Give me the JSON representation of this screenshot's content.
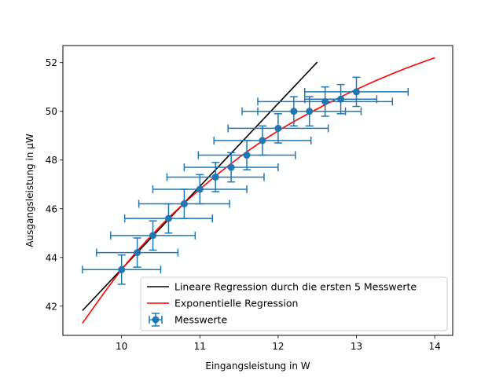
{
  "chart_data": {
    "type": "scatter",
    "xlabel": "Eingangsleistung in W",
    "ylabel": "Ausgangsleistung in μW",
    "xlim": [
      9.25,
      14.23
    ],
    "ylim": [
      40.8,
      52.7
    ],
    "xticks": [
      10,
      11,
      12,
      13,
      14
    ],
    "yticks": [
      42,
      44,
      46,
      48,
      50,
      52
    ],
    "grid": false,
    "legend_position": "lower-right",
    "series": [
      {
        "name": "Lineare Regression durch die ersten 5 Messwerte",
        "kind": "line",
        "color": "#000000",
        "x": [
          9.5,
          12.5
        ],
        "y": [
          41.82,
          52.02
        ]
      },
      {
        "name": "Exponentielle Regression",
        "kind": "curve",
        "color": "#ff0000",
        "x": [
          9.5,
          10.0,
          10.5,
          11.0,
          11.5,
          12.0,
          12.5,
          13.0,
          13.5,
          14.0
        ],
        "y": [
          41.3,
          43.5,
          45.3,
          46.8,
          48.1,
          49.2,
          50.1,
          50.9,
          51.6,
          52.2
        ]
      },
      {
        "name": "Messwerte",
        "kind": "errorbar",
        "color": "#1f77b4",
        "points": [
          {
            "x": 10.0,
            "y": 43.5,
            "xerr": 0.5,
            "yerr": 0.6
          },
          {
            "x": 10.2,
            "y": 44.2,
            "xerr": 0.52,
            "yerr": 0.6
          },
          {
            "x": 10.4,
            "y": 44.9,
            "xerr": 0.54,
            "yerr": 0.6
          },
          {
            "x": 10.6,
            "y": 45.6,
            "xerr": 0.56,
            "yerr": 0.6
          },
          {
            "x": 10.8,
            "y": 46.2,
            "xerr": 0.58,
            "yerr": 0.6
          },
          {
            "x": 11.0,
            "y": 46.8,
            "xerr": 0.6,
            "yerr": 0.6
          },
          {
            "x": 11.2,
            "y": 47.3,
            "xerr": 0.62,
            "yerr": 0.6
          },
          {
            "x": 11.4,
            "y": 47.7,
            "xerr": 0.6,
            "yerr": 0.6
          },
          {
            "x": 11.6,
            "y": 48.2,
            "xerr": 0.62,
            "yerr": 0.6
          },
          {
            "x": 11.8,
            "y": 48.8,
            "xerr": 0.62,
            "yerr": 0.6
          },
          {
            "x": 12.0,
            "y": 49.3,
            "xerr": 0.64,
            "yerr": 0.6
          },
          {
            "x": 12.2,
            "y": 50.0,
            "xerr": 0.66,
            "yerr": 0.6
          },
          {
            "x": 12.4,
            "y": 50.0,
            "xerr": 0.66,
            "yerr": 0.6
          },
          {
            "x": 12.6,
            "y": 50.4,
            "xerr": 0.86,
            "yerr": 0.6
          },
          {
            "x": 12.8,
            "y": 50.5,
            "xerr": 0.46,
            "yerr": 0.6
          },
          {
            "x": 13.0,
            "y": 50.8,
            "xerr": 0.66,
            "yerr": 0.6
          }
        ]
      }
    ]
  }
}
